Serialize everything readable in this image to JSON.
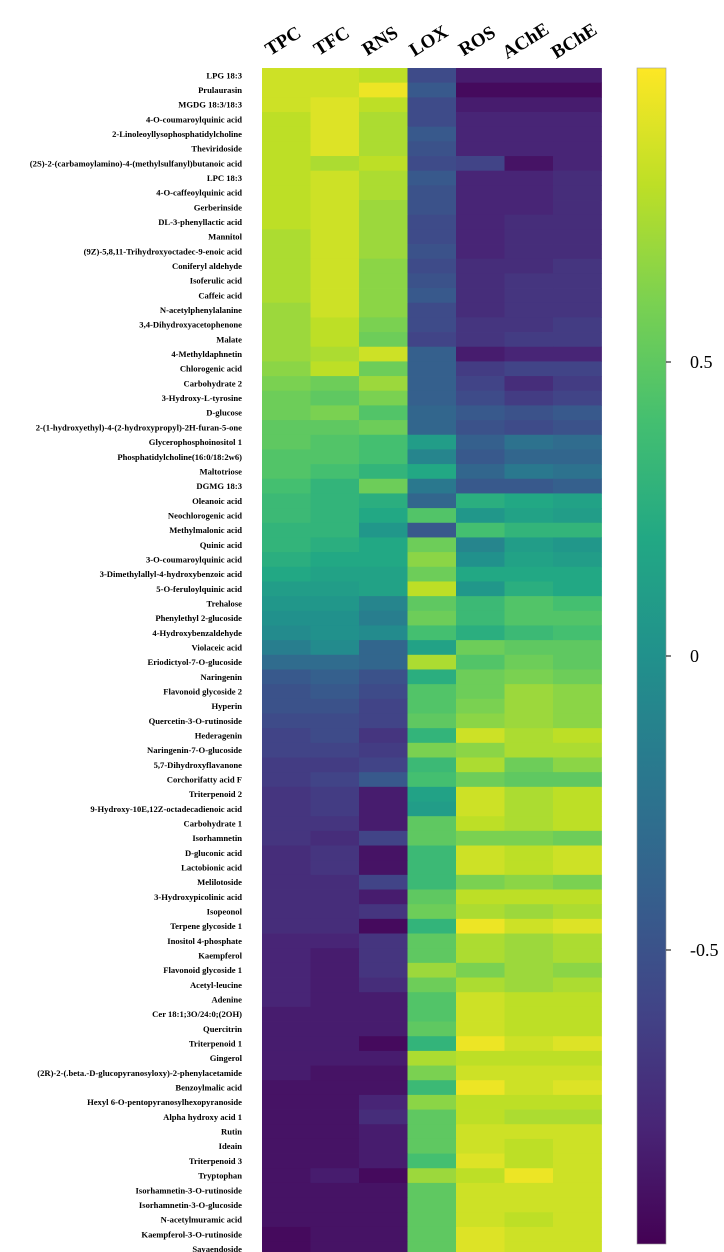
{
  "chart_data": {
    "type": "heatmap",
    "title": "",
    "columns": [
      "TPC",
      "TFC",
      "RNS",
      "LOX",
      "ROS",
      "AChE",
      "BChE"
    ],
    "rows": [
      {
        "label": "LPG 18:3",
        "values": [
          0.85,
          0.85,
          0.8,
          -0.55,
          -0.85,
          -0.85,
          -0.85
        ]
      },
      {
        "label": "Prulaurasin",
        "values": [
          0.85,
          0.85,
          0.95,
          -0.45,
          -0.95,
          -0.95,
          -0.95
        ]
      },
      {
        "label": "MGDG 18:3/18:3",
        "values": [
          0.85,
          0.9,
          0.8,
          -0.55,
          -0.85,
          -0.85,
          -0.85
        ]
      },
      {
        "label": "4-O-coumaroylquinic acid",
        "values": [
          0.8,
          0.9,
          0.75,
          -0.55,
          -0.8,
          -0.8,
          -0.8
        ]
      },
      {
        "label": "2-Linoleoyllysophosphatidylcholine",
        "values": [
          0.8,
          0.9,
          0.75,
          -0.45,
          -0.8,
          -0.8,
          -0.8
        ]
      },
      {
        "label": "Theviridoside",
        "values": [
          0.8,
          0.9,
          0.75,
          -0.5,
          -0.8,
          -0.8,
          -0.8
        ]
      },
      {
        "label": "(2S)-2-(carbamoylamino)-4-(methylsulfanyl)butanoic acid",
        "values": [
          0.8,
          0.75,
          0.8,
          -0.55,
          -0.6,
          -0.9,
          -0.8
        ]
      },
      {
        "label": "LPC 18:3",
        "values": [
          0.8,
          0.85,
          0.75,
          -0.45,
          -0.8,
          -0.8,
          -0.75
        ]
      },
      {
        "label": "4-O-caffeoylquinic acid",
        "values": [
          0.8,
          0.85,
          0.75,
          -0.5,
          -0.8,
          -0.8,
          -0.75
        ]
      },
      {
        "label": "Gerberinside",
        "values": [
          0.8,
          0.85,
          0.7,
          -0.5,
          -0.8,
          -0.8,
          -0.75
        ]
      },
      {
        "label": "DL-3-phenyllactic acid",
        "values": [
          0.8,
          0.85,
          0.7,
          -0.55,
          -0.8,
          -0.75,
          -0.75
        ]
      },
      {
        "label": "Mannitol",
        "values": [
          0.75,
          0.85,
          0.7,
          -0.55,
          -0.8,
          -0.75,
          -0.75
        ]
      },
      {
        "label": "(9Z)-5,8,11-Trihydroxyoctadec-9-enoic acid",
        "values": [
          0.75,
          0.85,
          0.7,
          -0.5,
          -0.8,
          -0.75,
          -0.75
        ]
      },
      {
        "label": "Coniferyl aldehyde",
        "values": [
          0.75,
          0.85,
          0.65,
          -0.55,
          -0.75,
          -0.75,
          -0.7
        ]
      },
      {
        "label": "Isoferulic acid",
        "values": [
          0.75,
          0.85,
          0.65,
          -0.5,
          -0.75,
          -0.7,
          -0.7
        ]
      },
      {
        "label": "Caffeic acid",
        "values": [
          0.75,
          0.85,
          0.65,
          -0.45,
          -0.75,
          -0.7,
          -0.7
        ]
      },
      {
        "label": "N-acetylphenylalanine",
        "values": [
          0.7,
          0.85,
          0.65,
          -0.55,
          -0.75,
          -0.7,
          -0.7
        ]
      },
      {
        "label": "3,4-Dihydroxyacetophenone",
        "values": [
          0.7,
          0.8,
          0.6,
          -0.55,
          -0.7,
          -0.7,
          -0.65
        ]
      },
      {
        "label": "Malate",
        "values": [
          0.7,
          0.8,
          0.55,
          -0.6,
          -0.7,
          -0.65,
          -0.65
        ]
      },
      {
        "label": "4-Methyldaphnetin",
        "values": [
          0.7,
          0.75,
          0.85,
          -0.4,
          -0.85,
          -0.8,
          -0.8
        ]
      },
      {
        "label": "Chlorogenic acid",
        "values": [
          0.65,
          0.8,
          0.55,
          -0.4,
          -0.65,
          -0.6,
          -0.6
        ]
      },
      {
        "label": "Carbohydrate 2",
        "values": [
          0.6,
          0.55,
          0.7,
          -0.4,
          -0.6,
          -0.75,
          -0.65
        ]
      },
      {
        "label": "3-Hydroxy-L-tyrosine",
        "values": [
          0.55,
          0.5,
          0.6,
          -0.4,
          -0.55,
          -0.65,
          -0.6
        ]
      },
      {
        "label": "D-glucose",
        "values": [
          0.55,
          0.6,
          0.45,
          -0.35,
          -0.45,
          -0.5,
          -0.45
        ]
      },
      {
        "label": "2-(1-hydroxyethyl)-4-(2-hydroxypropyl)-2H-furan-5-one",
        "values": [
          0.5,
          0.5,
          0.55,
          -0.35,
          -0.5,
          -0.55,
          -0.5
        ]
      },
      {
        "label": "Glycerophosphoinositol 1",
        "values": [
          0.5,
          0.45,
          0.4,
          0.1,
          -0.4,
          -0.25,
          -0.3
        ]
      },
      {
        "label": "Phosphatidylcholine(16:0/18:2w6)",
        "values": [
          0.45,
          0.45,
          0.4,
          -0.1,
          -0.45,
          -0.35,
          -0.35
        ]
      },
      {
        "label": "Maltotriose",
        "values": [
          0.45,
          0.4,
          0.3,
          0.2,
          -0.35,
          -0.2,
          -0.25
        ]
      },
      {
        "label": "DGMG 18:3",
        "values": [
          0.4,
          0.3,
          0.55,
          -0.2,
          -0.45,
          -0.45,
          -0.4
        ]
      },
      {
        "label": "Oleanoic acid",
        "values": [
          0.35,
          0.3,
          0.25,
          -0.35,
          0.25,
          0.2,
          0.15
        ]
      },
      {
        "label": "Neochlorogenic acid",
        "values": [
          0.35,
          0.3,
          0.2,
          0.45,
          0.05,
          0.15,
          0.1
        ]
      },
      {
        "label": "Methylmalonic acid",
        "values": [
          0.3,
          0.3,
          0.05,
          -0.45,
          0.4,
          0.3,
          0.3
        ]
      },
      {
        "label": "Quinic acid",
        "values": [
          0.3,
          0.25,
          0.2,
          0.55,
          -0.1,
          0.1,
          0.05
        ]
      },
      {
        "label": "3-O-coumaroylquinic acid",
        "values": [
          0.25,
          0.2,
          0.2,
          0.65,
          0.0,
          0.15,
          0.1
        ]
      },
      {
        "label": "3-Dimethylallyl-4-hydroxybenzoic acid",
        "values": [
          0.2,
          0.15,
          0.15,
          0.55,
          0.2,
          0.2,
          0.2
        ]
      },
      {
        "label": "5-O-feruloylquinic acid",
        "values": [
          0.1,
          0.1,
          0.15,
          0.8,
          0.05,
          0.25,
          0.2
        ]
      },
      {
        "label": "Trehalose",
        "values": [
          0.05,
          0.05,
          -0.1,
          0.5,
          0.35,
          0.45,
          0.4
        ]
      },
      {
        "label": "Phenylethyl 2-glucoside",
        "values": [
          0.0,
          0.0,
          -0.15,
          0.55,
          0.35,
          0.45,
          0.45
        ]
      },
      {
        "label": "4-Hydroxybenzaldehyde",
        "values": [
          -0.05,
          0.0,
          -0.05,
          0.4,
          0.25,
          0.35,
          0.4
        ]
      },
      {
        "label": "Violaceic acid",
        "values": [
          -0.15,
          -0.05,
          -0.35,
          0.15,
          0.55,
          0.5,
          0.5
        ]
      },
      {
        "label": "Eriodictyol-7-O-glucoside",
        "values": [
          -0.3,
          -0.3,
          -0.35,
          0.75,
          0.45,
          0.55,
          0.5
        ]
      },
      {
        "label": "Naringenin",
        "values": [
          -0.45,
          -0.4,
          -0.5,
          0.25,
          0.55,
          0.6,
          0.55
        ]
      },
      {
        "label": "Flavonoid glycoside 2",
        "values": [
          -0.5,
          -0.45,
          -0.55,
          0.45,
          0.55,
          0.7,
          0.65
        ]
      },
      {
        "label": "Hyperin",
        "values": [
          -0.5,
          -0.5,
          -0.6,
          0.45,
          0.6,
          0.7,
          0.65
        ]
      },
      {
        "label": "Quercetin-3-O-rutinoside",
        "values": [
          -0.55,
          -0.55,
          -0.6,
          0.5,
          0.65,
          0.7,
          0.65
        ]
      },
      {
        "label": "Hederagenin",
        "values": [
          -0.6,
          -0.55,
          -0.7,
          0.3,
          0.85,
          0.75,
          0.8
        ]
      },
      {
        "label": "Naringenin-7-O-glucoside",
        "values": [
          -0.6,
          -0.6,
          -0.65,
          0.6,
          0.65,
          0.75,
          0.75
        ]
      },
      {
        "label": "5,7-Dihydroxyflavanone",
        "values": [
          -0.65,
          -0.65,
          -0.6,
          0.35,
          0.75,
          0.55,
          0.65
        ]
      },
      {
        "label": "Corchorifatty acid F",
        "values": [
          -0.65,
          -0.6,
          -0.45,
          0.4,
          0.55,
          0.5,
          0.5
        ]
      },
      {
        "label": "Triterpenoid 2",
        "values": [
          -0.7,
          -0.65,
          -0.85,
          0.15,
          0.85,
          0.75,
          0.8
        ]
      },
      {
        "label": "9-Hydroxy-10E,12Z-octadecadienoic acid",
        "values": [
          -0.7,
          -0.65,
          -0.85,
          0.1,
          0.85,
          0.75,
          0.8
        ]
      },
      {
        "label": "Carbohydrate 1",
        "values": [
          -0.7,
          -0.7,
          -0.85,
          0.5,
          0.8,
          0.75,
          0.8
        ]
      },
      {
        "label": "Isorhamnetin",
        "values": [
          -0.7,
          -0.75,
          -0.6,
          0.5,
          0.6,
          0.6,
          0.55
        ]
      },
      {
        "label": "D-gluconic acid",
        "values": [
          -0.75,
          -0.7,
          -0.9,
          0.35,
          0.85,
          0.8,
          0.85
        ]
      },
      {
        "label": "Lactobionic acid",
        "values": [
          -0.75,
          -0.7,
          -0.9,
          0.35,
          0.85,
          0.8,
          0.85
        ]
      },
      {
        "label": "Melilotoside",
        "values": [
          -0.75,
          -0.75,
          -0.6,
          0.35,
          0.6,
          0.65,
          0.6
        ]
      },
      {
        "label": "3-Hydroxypicolinic acid",
        "values": [
          -0.75,
          -0.75,
          -0.85,
          0.5,
          0.8,
          0.8,
          0.8
        ]
      },
      {
        "label": "Isopeonol",
        "values": [
          -0.75,
          -0.75,
          -0.7,
          0.55,
          0.75,
          0.7,
          0.75
        ]
      },
      {
        "label": "Terpene glycoside 1",
        "values": [
          -0.75,
          -0.75,
          -0.95,
          0.3,
          0.95,
          0.85,
          0.9
        ]
      },
      {
        "label": "Inositol 4-phosphate",
        "values": [
          -0.8,
          -0.8,
          -0.7,
          0.5,
          0.75,
          0.7,
          0.75
        ]
      },
      {
        "label": "Kaempferol",
        "values": [
          -0.8,
          -0.85,
          -0.7,
          0.5,
          0.75,
          0.7,
          0.75
        ]
      },
      {
        "label": "Flavonoid glycoside 1",
        "values": [
          -0.8,
          -0.85,
          -0.7,
          0.7,
          0.6,
          0.7,
          0.65
        ]
      },
      {
        "label": "Acetyl-leucine",
        "values": [
          -0.8,
          -0.85,
          -0.75,
          0.55,
          0.75,
          0.7,
          0.75
        ]
      },
      {
        "label": "Adenine",
        "values": [
          -0.8,
          -0.85,
          -0.85,
          0.45,
          0.85,
          0.8,
          0.8
        ]
      },
      {
        "label": "Cer 18:1;3O/24:0;(2OH)",
        "values": [
          -0.85,
          -0.85,
          -0.85,
          0.45,
          0.85,
          0.8,
          0.8
        ]
      },
      {
        "label": "Quercitrin",
        "values": [
          -0.85,
          -0.85,
          -0.85,
          0.5,
          0.85,
          0.8,
          0.8
        ]
      },
      {
        "label": "Triterpenoid 1",
        "values": [
          -0.85,
          -0.85,
          -0.95,
          0.3,
          0.95,
          0.85,
          0.9
        ]
      },
      {
        "label": "Gingerol",
        "values": [
          -0.85,
          -0.85,
          -0.85,
          0.75,
          0.8,
          0.8,
          0.8
        ]
      },
      {
        "label": "(2R)-2-(.beta.-D-glucopyranosyloxy)-2-phenylacetamide",
        "values": [
          -0.85,
          -0.9,
          -0.9,
          0.6,
          0.85,
          0.85,
          0.85
        ]
      },
      {
        "label": "Benzoylmalic acid",
        "values": [
          -0.9,
          -0.9,
          -0.9,
          0.35,
          0.95,
          0.85,
          0.9
        ]
      },
      {
        "label": "Hexyl 6-O-pentopyranosylhexopyranoside",
        "values": [
          -0.9,
          -0.9,
          -0.8,
          0.65,
          0.8,
          0.8,
          0.8
        ]
      },
      {
        "label": "Alpha hydroxy acid 1",
        "values": [
          -0.9,
          -0.9,
          -0.75,
          0.5,
          0.8,
          0.75,
          0.75
        ]
      },
      {
        "label": "Rutin",
        "values": [
          -0.9,
          -0.9,
          -0.85,
          0.5,
          0.85,
          0.85,
          0.85
        ]
      },
      {
        "label": "Ideain",
        "values": [
          -0.9,
          -0.9,
          -0.85,
          0.5,
          0.85,
          0.8,
          0.85
        ]
      },
      {
        "label": "Triterpenoid 3",
        "values": [
          -0.9,
          -0.9,
          -0.85,
          0.4,
          0.9,
          0.8,
          0.85
        ]
      },
      {
        "label": "Tryptophan",
        "values": [
          -0.9,
          -0.85,
          -0.95,
          0.7,
          0.8,
          0.95,
          0.85
        ]
      },
      {
        "label": "Isorhamnetin-3-O-rutinoside",
        "values": [
          -0.9,
          -0.9,
          -0.9,
          0.5,
          0.85,
          0.85,
          0.85
        ]
      },
      {
        "label": "Isorhamnetin-3-O-glucoside",
        "values": [
          -0.9,
          -0.9,
          -0.9,
          0.5,
          0.85,
          0.85,
          0.85
        ]
      },
      {
        "label": "N-acetylmuramic acid",
        "values": [
          -0.9,
          -0.9,
          -0.9,
          0.5,
          0.85,
          0.8,
          0.85
        ]
      },
      {
        "label": "Kaempferol-3-O-rutinoside",
        "values": [
          -0.95,
          -0.9,
          -0.9,
          0.5,
          0.9,
          0.85,
          0.85
        ]
      },
      {
        "label": "Sayaendoside",
        "values": [
          -0.95,
          -0.9,
          -0.9,
          0.5,
          0.9,
          0.85,
          0.85
        ]
      }
    ],
    "colorbar": {
      "colormap": "viridis",
      "range": [
        -1,
        1
      ],
      "ticks": [
        0.5,
        0,
        -0.5
      ],
      "tick_labels": [
        "0.5",
        "0",
        "-0.5"
      ]
    }
  }
}
